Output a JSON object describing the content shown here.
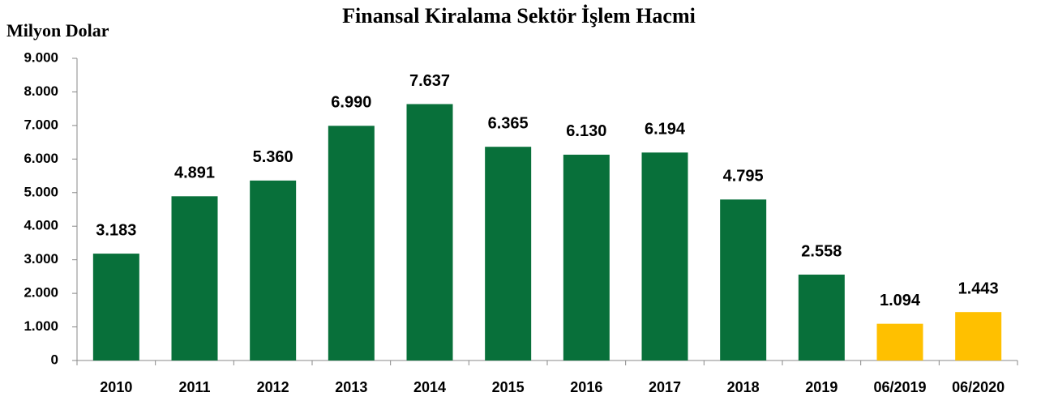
{
  "chart_data": {
    "type": "bar",
    "title": "Finansal Kiralama Sektör İşlem Hacmi",
    "y_label": "Milyon Dolar",
    "categories": [
      "2010",
      "2011",
      "2012",
      "2013",
      "2014",
      "2015",
      "2016",
      "2017",
      "2018",
      "2019",
      "06/2019",
      "06/2020"
    ],
    "values": [
      3183,
      4891,
      5360,
      6990,
      7637,
      6365,
      6130,
      6194,
      4795,
      2558,
      1094,
      1443
    ],
    "value_labels": [
      "3.183",
      "4.891",
      "5.360",
      "6.990",
      "7.637",
      "6.365",
      "6.130",
      "6.194",
      "4.795",
      "2.558",
      "1.094",
      "1.443"
    ],
    "colors": [
      "#08703a",
      "#08703a",
      "#08703a",
      "#08703a",
      "#08703a",
      "#08703a",
      "#08703a",
      "#08703a",
      "#08703a",
      "#08703a",
      "#ffc000",
      "#ffc000"
    ],
    "ylim": [
      0,
      9000
    ],
    "yticks": [
      0,
      {
        "value": 1000,
        "label": "1.000"
      },
      {
        "value": 2000,
        "label": "2.000"
      },
      {
        "value": 3000,
        "label": "3.000"
      },
      {
        "value": 4000,
        "label": "4.000"
      },
      {
        "value": 5000,
        "label": "5.000"
      },
      {
        "value": 6000,
        "label": "6.000"
      },
      {
        "value": 7000,
        "label": "7.000"
      },
      {
        "value": 8000,
        "label": "8.000"
      },
      {
        "value": 9000,
        "label": "9.000"
      }
    ],
    "grid": false
  }
}
